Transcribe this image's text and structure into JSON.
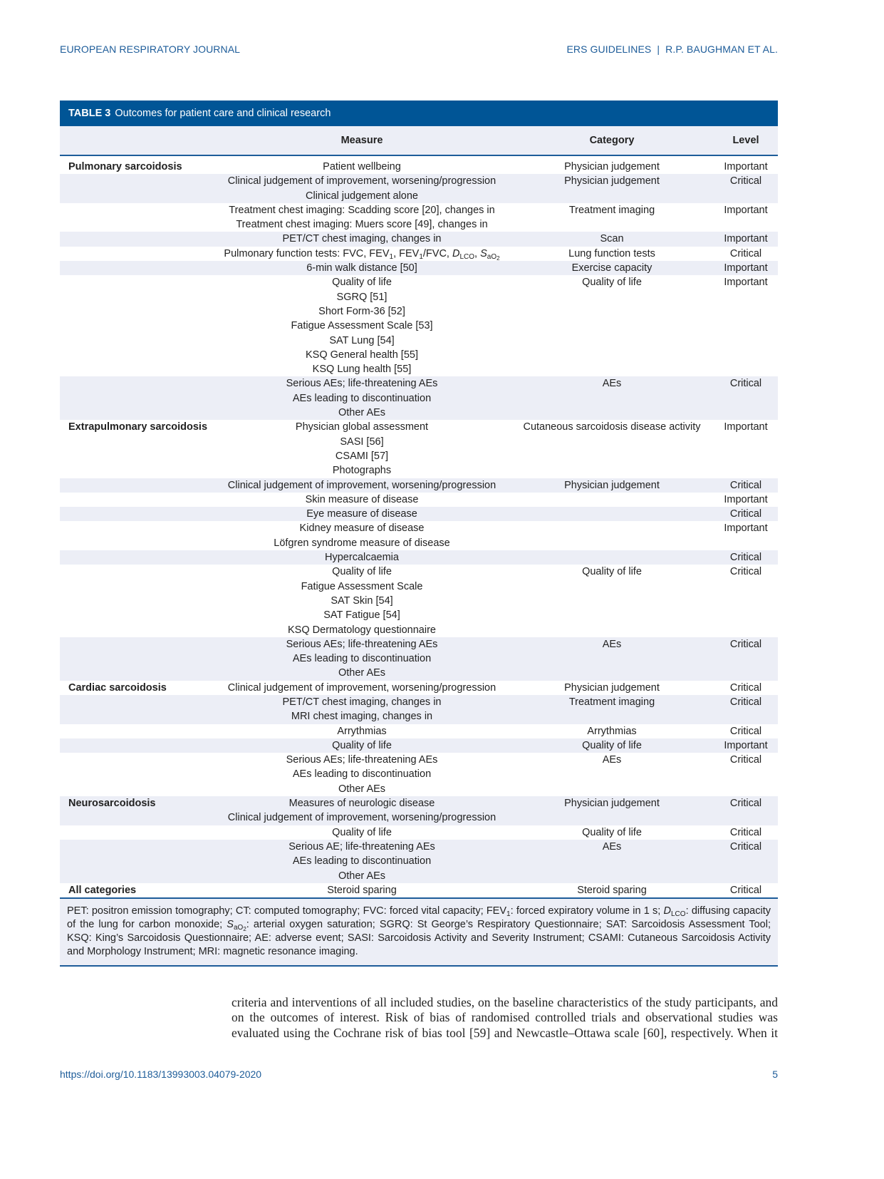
{
  "header": {
    "journal": "EUROPEAN RESPIRATORY JOURNAL",
    "section": "ERS GUIDELINES",
    "separator": "|",
    "authors": "R.P. BAUGHMAN ET AL."
  },
  "table": {
    "label": "TABLE 3",
    "title": "Outcomes for patient care and clinical research",
    "columns": [
      "",
      "Measure",
      "Category",
      "Level"
    ],
    "rows": [
      {
        "section": "Pulmonary sarcoidosis",
        "measure": [
          "Patient wellbeing"
        ],
        "category": "Physician judgement",
        "level": "Important"
      },
      {
        "section": "",
        "measure": [
          "Clinical judgement of improvement, worsening/progression",
          "Clinical judgement alone"
        ],
        "category": "Physician judgement",
        "level": "Critical"
      },
      {
        "section": "",
        "measure": [
          "Treatment chest imaging: Scadding score [20], changes in",
          "Treatment chest imaging: Muers score [49], changes in"
        ],
        "category": "Treatment imaging",
        "level": "Important"
      },
      {
        "section": "",
        "measure": [
          "PET/CT chest imaging, changes in"
        ],
        "category": "Scan",
        "level": "Important"
      },
      {
        "section": "",
        "measure": [
          [
            {
              "t": "Pulmonary function tests: FVC, FEV"
            },
            {
              "t": "1",
              "sub": true
            },
            {
              "t": ", FEV"
            },
            {
              "t": "1",
              "sub": true
            },
            {
              "t": "/FVC, "
            },
            {
              "t": "D",
              "i": true
            },
            {
              "t": "LCO",
              "sub": true
            },
            {
              "t": ", "
            },
            {
              "t": "S",
              "i": true
            },
            {
              "t": "aO",
              "sub": true,
              "sub2": "2"
            }
          ]
        ],
        "category": "Lung function tests",
        "level": "Critical"
      },
      {
        "section": "",
        "measure": [
          "6-min walk distance [50]"
        ],
        "category": "Exercise capacity",
        "level": "Important"
      },
      {
        "section": "",
        "measure": [
          "Quality of life",
          "SGRQ [51]",
          "Short Form-36 [52]",
          "Fatigue Assessment Scale [53]",
          "SAT Lung [54]",
          "KSQ General health [55]",
          "KSQ Lung health [55]"
        ],
        "category": "Quality of life",
        "level": "Important"
      },
      {
        "section": "",
        "measure": [
          "Serious AEs; life-threatening AEs",
          "AEs leading to discontinuation",
          "Other AEs"
        ],
        "category": "AEs",
        "level": "Critical"
      },
      {
        "section": "Extrapulmonary sarcoidosis",
        "measure": [
          "Physician global assessment",
          "SASI [56]",
          "CSAMI [57]",
          "Photographs"
        ],
        "category": "Cutaneous sarcoidosis disease activity",
        "level": "Important"
      },
      {
        "section": "",
        "measure": [
          "Clinical judgement of improvement, worsening/progression"
        ],
        "category": "Physician judgement",
        "level": "Critical"
      },
      {
        "section": "",
        "measure": [
          "Skin measure of disease"
        ],
        "category": "",
        "level": "Important"
      },
      {
        "section": "",
        "measure": [
          "Eye measure of disease"
        ],
        "category": "",
        "level": "Critical"
      },
      {
        "section": "",
        "measure": [
          "Kidney measure of disease",
          "Löfgren syndrome measure of disease"
        ],
        "category": "",
        "level": "Important"
      },
      {
        "section": "",
        "measure": [
          "Hypercalcaemia"
        ],
        "category": "",
        "level": "Critical"
      },
      {
        "section": "",
        "measure": [
          "Quality of life",
          "Fatigue Assessment Scale",
          "SAT Skin [54]",
          "SAT Fatigue [54]",
          "KSQ Dermatology questionnaire"
        ],
        "category": "Quality of life",
        "level": "Critical"
      },
      {
        "section": "",
        "measure": [
          "Serious AEs; life-threatening AEs",
          "AEs leading to discontinuation",
          "Other AEs"
        ],
        "category": "AEs",
        "level": "Critical"
      },
      {
        "section": "Cardiac sarcoidosis",
        "measure": [
          "Clinical judgement of improvement, worsening/progression"
        ],
        "category": "Physician judgement",
        "level": "Critical"
      },
      {
        "section": "",
        "measure": [
          "PET/CT chest imaging, changes in",
          "MRI chest imaging, changes in"
        ],
        "category": "Treatment imaging",
        "level": "Critical"
      },
      {
        "section": "",
        "measure": [
          "Arrythmias"
        ],
        "category": "Arrythmias",
        "level": "Critical"
      },
      {
        "section": "",
        "measure": [
          "Quality of life"
        ],
        "category": "Quality of life",
        "level": "Important"
      },
      {
        "section": "",
        "measure": [
          "Serious AEs; life-threatening AEs",
          "AEs leading to discontinuation",
          "Other AEs"
        ],
        "category": "AEs",
        "level": "Critical"
      },
      {
        "section": "Neurosarcoidosis",
        "measure": [
          "Measures of neurologic disease",
          "Clinical judgement of improvement, worsening/progression"
        ],
        "category": "Physician judgement",
        "level": "Critical"
      },
      {
        "section": "",
        "measure": [
          "Quality of life"
        ],
        "category": "Quality of life",
        "level": "Critical"
      },
      {
        "section": "",
        "measure": [
          "Serious AE; life-threatening AEs",
          "AEs leading to discontinuation",
          "Other AEs"
        ],
        "category": "AEs",
        "level": "Critical"
      },
      {
        "section": "All categories",
        "measure": [
          "Steroid sparing"
        ],
        "category": "Steroid sparing",
        "level": "Critical"
      }
    ],
    "notes": [
      {
        "t": "PET: positron emission tomography; CT: computed tomography; FVC: forced vital capacity; FEV"
      },
      {
        "t": "1",
        "sub": true
      },
      {
        "t": ": forced expiratory volume in 1 s; "
      },
      {
        "t": "D",
        "i": true
      },
      {
        "t": "LCO",
        "sub": true
      },
      {
        "t": ": diffusing capacity of the lung for carbon monoxide; "
      },
      {
        "t": "S",
        "i": true
      },
      {
        "t": "aO",
        "sub": true,
        "sub2": "2"
      },
      {
        "t": ": arterial oxygen saturation; SGRQ: St George’s Respiratory Questionnaire; SAT: Sarcoidosis Assessment Tool; KSQ: King’s Sarcoidosis Questionnaire; AE: adverse event; SASI: Sarcoidosis Activity and Severity Instrument; CSAMI: Cutaneous Sarcoidosis Activity and Morphology Instrument; MRI: magnetic resonance imaging."
      }
    ]
  },
  "body_text": "criteria and interventions of all included studies, on the baseline characteristics of the study participants, and on the outcomes of interest. Risk of bias of randomised controlled trials and observational studies was evaluated using the Cochrane risk of bias tool [59] and Newcastle–Ottawa scale [60], respectively. When it",
  "footer": {
    "doi": "https://doi.org/10.1183/13993003.04079-2020",
    "page": "5"
  },
  "colors": {
    "accent": "#005596",
    "shade": "#eceef6",
    "header_text": "#1d5c99"
  }
}
